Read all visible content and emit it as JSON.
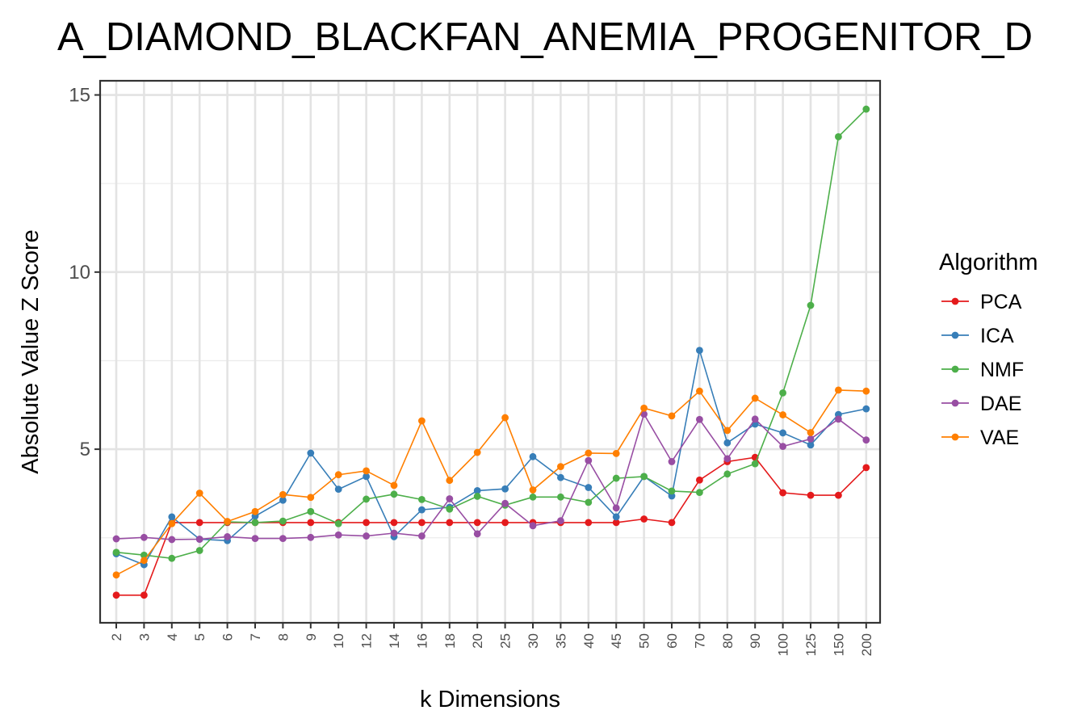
{
  "chart_data": {
    "type": "line",
    "title": "A_DIAMOND_BLACKFAN_ANEMIA_PROGENITOR_D",
    "xlabel": "k Dimensions",
    "ylabel": "Absolute Value Z Score",
    "categories": [
      "2",
      "3",
      "4",
      "5",
      "6",
      "7",
      "8",
      "9",
      "10",
      "12",
      "14",
      "16",
      "18",
      "20",
      "25",
      "30",
      "35",
      "40",
      "45",
      "50",
      "60",
      "70",
      "80",
      "90",
      "100",
      "125",
      "150",
      "200"
    ],
    "ylim": [
      0.1,
      15.4
    ],
    "yticks": [
      5,
      10,
      15
    ],
    "grid": true,
    "legend": {
      "title": "Algorithm",
      "placement": "right"
    },
    "series": [
      {
        "name": "PCA",
        "color": "#E41A1C",
        "values": [
          0.88,
          0.88,
          2.93,
          2.93,
          2.93,
          2.93,
          2.93,
          2.93,
          2.93,
          2.93,
          2.93,
          2.93,
          2.93,
          2.93,
          2.93,
          2.93,
          2.93,
          2.93,
          2.93,
          3.03,
          2.93,
          4.13,
          4.65,
          4.77,
          3.77,
          3.7,
          3.7,
          4.48
        ]
      },
      {
        "name": "ICA",
        "color": "#377EB8",
        "values": [
          2.05,
          1.74,
          3.09,
          2.46,
          2.42,
          3.11,
          3.56,
          4.89,
          3.87,
          4.23,
          2.53,
          3.29,
          3.36,
          3.83,
          3.88,
          4.79,
          4.2,
          3.92,
          3.09,
          4.23,
          3.68,
          7.79,
          5.18,
          5.71,
          5.46,
          5.12,
          5.98,
          6.14
        ]
      },
      {
        "name": "NMF",
        "color": "#4DAF4A",
        "values": [
          2.09,
          2.01,
          1.92,
          2.14,
          2.95,
          2.93,
          2.97,
          3.24,
          2.9,
          3.59,
          3.73,
          3.58,
          3.31,
          3.67,
          3.42,
          3.65,
          3.65,
          3.5,
          4.18,
          4.23,
          3.82,
          3.78,
          4.3,
          4.59,
          6.59,
          9.06,
          13.82,
          14.6
        ]
      },
      {
        "name": "DAE",
        "color": "#984EA3",
        "values": [
          2.47,
          2.51,
          2.45,
          2.46,
          2.53,
          2.48,
          2.48,
          2.51,
          2.58,
          2.55,
          2.63,
          2.55,
          3.6,
          2.61,
          3.47,
          2.84,
          2.98,
          4.68,
          3.34,
          5.99,
          4.65,
          5.84,
          4.73,
          5.85,
          5.08,
          5.29,
          5.85,
          5.26
        ]
      },
      {
        "name": "VAE",
        "color": "#FF7F00",
        "values": [
          1.45,
          1.86,
          2.9,
          3.76,
          2.96,
          3.24,
          3.72,
          3.64,
          4.28,
          4.39,
          3.98,
          5.8,
          4.12,
          4.91,
          5.89,
          3.85,
          4.51,
          4.89,
          4.88,
          6.16,
          5.94,
          6.64,
          5.53,
          6.44,
          5.97,
          5.47,
          6.67,
          6.64
        ]
      }
    ]
  }
}
